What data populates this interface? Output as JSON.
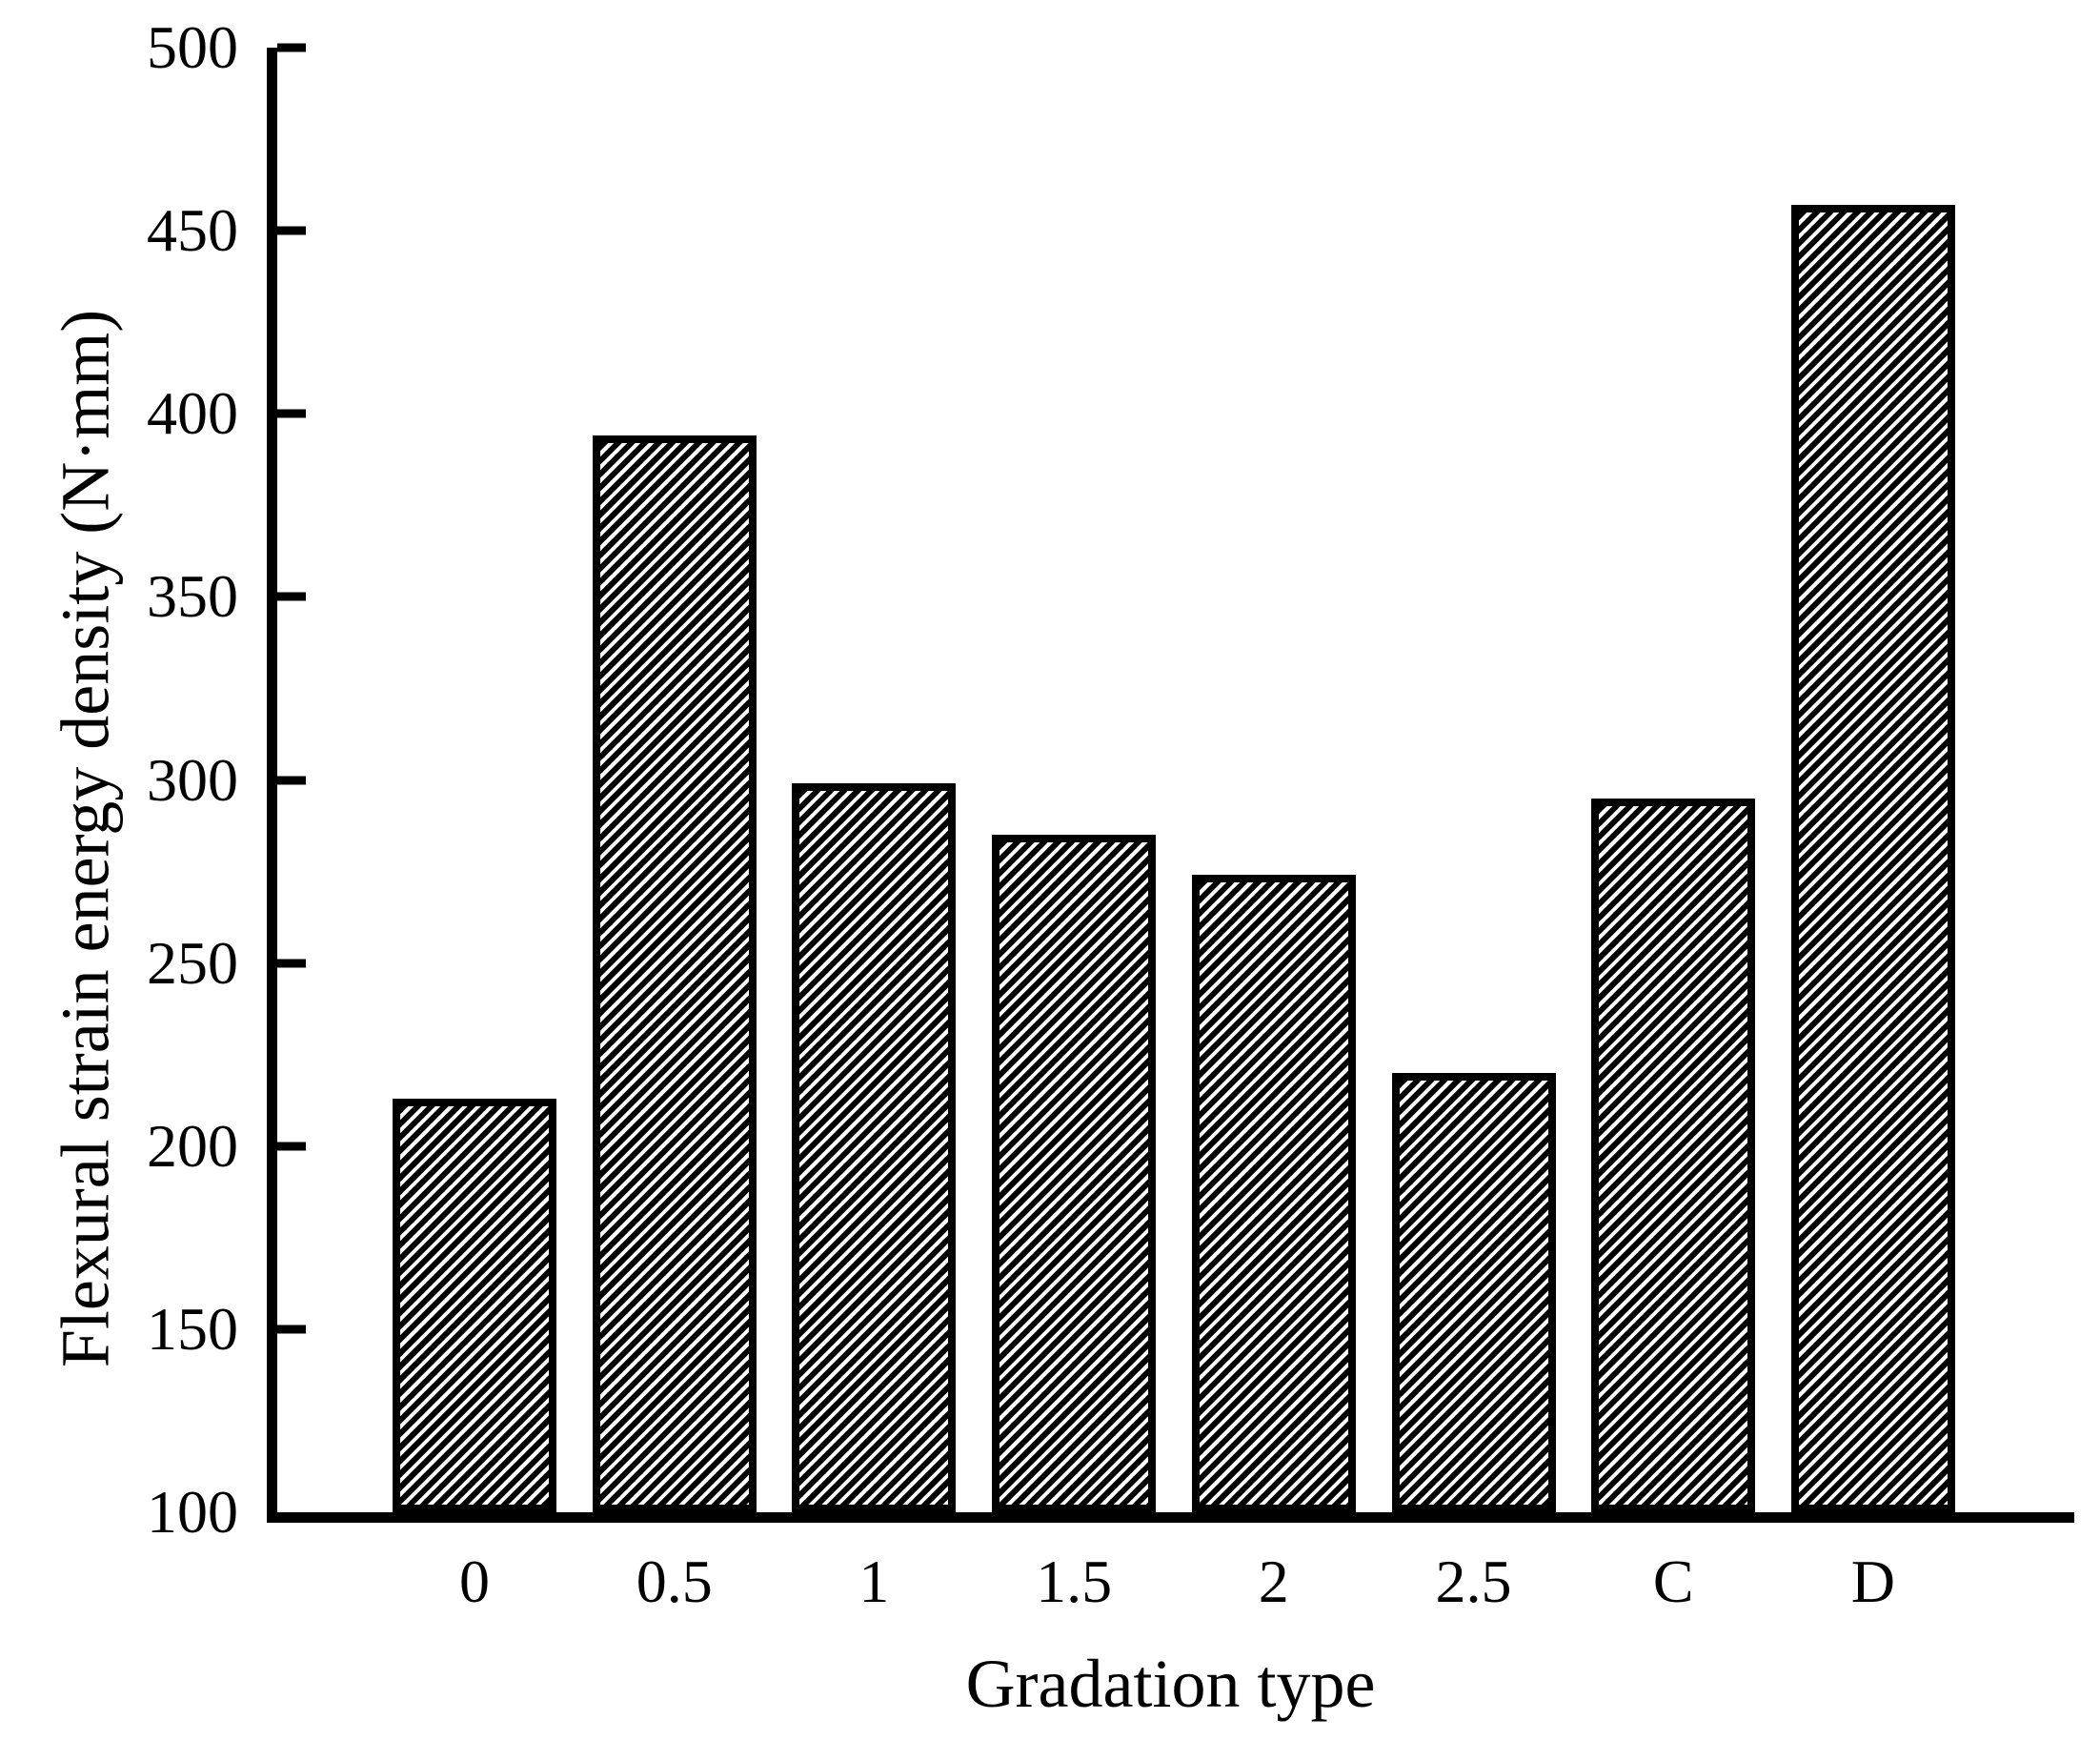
{
  "figure": {
    "background": "#ffffff",
    "ink": "#000000"
  },
  "chart_data": {
    "type": "bar",
    "title": "",
    "xlabel": "Gradation type",
    "ylabel": "Flexural strain energy density (N·mm)",
    "categories": [
      "0",
      "0.5",
      "1",
      "1.5",
      "2",
      "2.5",
      "C",
      "D"
    ],
    "values": [
      213,
      394,
      299,
      285,
      274,
      220,
      295,
      457
    ],
    "ylim": [
      100,
      500
    ],
    "ytick_step": 50,
    "yticks": [
      100,
      150,
      200,
      250,
      300,
      350,
      400,
      450,
      500
    ],
    "grid": false,
    "legend_position": "none",
    "bar_style": {
      "fill": "diagonal-hatch",
      "hatch_direction": "/",
      "edge_color": "#000000",
      "hatch_color": "#000000",
      "background_color": "#ffffff"
    }
  }
}
